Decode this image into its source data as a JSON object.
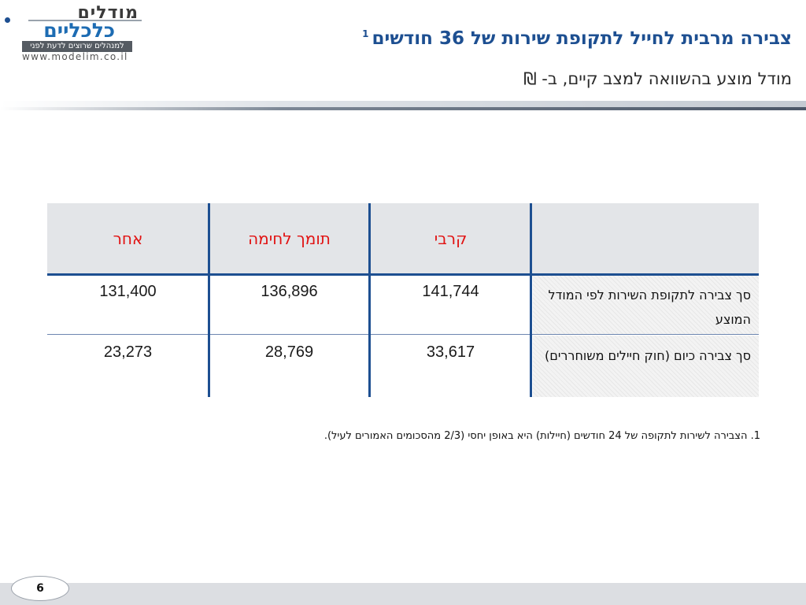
{
  "logo": {
    "line1": "מודלים",
    "line2": "כלכליים",
    "tagline": "למנהלים שרוצים לדעת לפני",
    "url": "www.modelim.co.il"
  },
  "header": {
    "title": "צבירה מרבית לחייל לתקופת שירות של 36 חודשים",
    "title_footnote": "1",
    "subtitle": "מודל מוצע בהשוואה למצב קיים, ב- ₪"
  },
  "table": {
    "columns": [
      "קרבי",
      "תומך לחימה",
      "אחר"
    ],
    "rows": [
      {
        "label": "סך צבירה לתקופת השירות לפי המודל המוצע",
        "values": [
          "141,744",
          "136,896",
          "131,400"
        ]
      },
      {
        "label": "סך צבירה כיום (חוק חיילים משוחררים)",
        "values": [
          "33,617",
          "28,769",
          "23,273"
        ]
      }
    ]
  },
  "footnote": "1. הצבירה לשירות לתקופה של 24 חודשים (חיילות) היא באופן יחסי (2/3 מהסכומים האמורים לעיל).",
  "page_number": "6",
  "colors": {
    "title": "#1d4f91",
    "header_text": "#e11313",
    "grid": "#1d4f91"
  }
}
